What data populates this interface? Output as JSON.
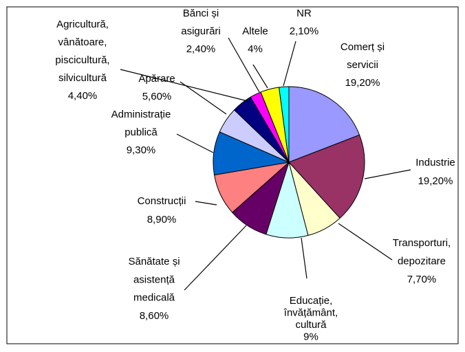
{
  "chart_data": {
    "type": "pie",
    "categories": [
      "Comerț și\nservicii",
      "Industrie",
      "Transporturi,\ndepozitare",
      "Educație,\nînvățământ,\ncultură",
      "Sănătate și\nasistență\nmedicală",
      "Construcții",
      "Administrație\npublică",
      "Apărare",
      "Agricultură,\nvânătoare,\npiscicultură,\nsilvicultură",
      "Bănci și\nasigurări",
      "Altele",
      "NR"
    ],
    "values": [
      19.2,
      19.2,
      7.7,
      9,
      8.6,
      8.9,
      9.3,
      5.6,
      4.4,
      2.4,
      4,
      2.1
    ],
    "value_labels": [
      "19,20%",
      "19,20%",
      "7,70%",
      "9%",
      "8,60%",
      "8,90%",
      "9,30%",
      "5,60%",
      "4,40%",
      "2,40%",
      "4%",
      "2,10%"
    ],
    "colors": [
      "#9999FF",
      "#993366",
      "#FFFFCC",
      "#CCFFFF",
      "#660066",
      "#FF8080",
      "#0066CC",
      "#CCCCFF",
      "#000080",
      "#FF00FF",
      "#FFFF00",
      "#00FFFF"
    ]
  }
}
